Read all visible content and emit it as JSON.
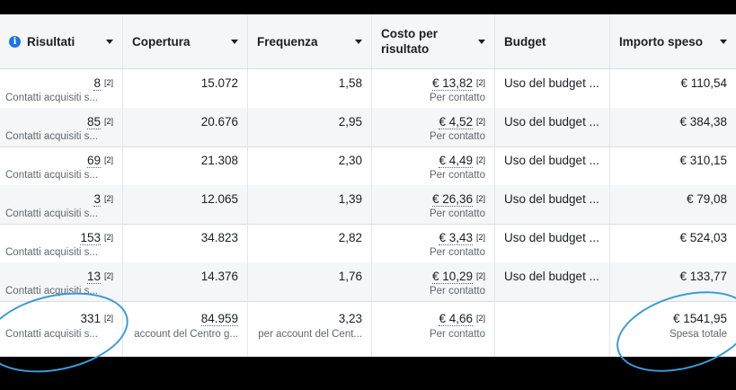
{
  "columns": [
    {
      "label": "Risultati",
      "has_info": true,
      "has_caret": true
    },
    {
      "label": "Copertura",
      "has_caret": true
    },
    {
      "label": "Frequenza",
      "has_caret": true
    },
    {
      "label": "Costo per\nrisultato",
      "has_caret": true
    },
    {
      "label": "Budget",
      "has_caret": false
    },
    {
      "label": "Importo speso",
      "has_caret": true
    }
  ],
  "rows": [
    {
      "results": "8",
      "results_sup": "[2]",
      "results_sub": "Contatti acquisiti s...",
      "reach": "15.072",
      "frequency": "1,58",
      "cost": "€ 13,82",
      "cost_sup": "[2]",
      "cost_sub": "Per contatto",
      "budget": "Uso del budget ...",
      "spent": "€ 110,54"
    },
    {
      "results": "85",
      "results_sup": "[2]",
      "results_sub": "Contatti acquisiti s...",
      "reach": "20.676",
      "frequency": "2,95",
      "cost": "€ 4,52",
      "cost_sup": "[2]",
      "cost_sub": "Per contatto",
      "budget": "Uso del budget ...",
      "spent": "€ 384,38"
    },
    {
      "results": "69",
      "results_sup": "[2]",
      "results_sub": "Contatti acquisiti s...",
      "reach": "21.308",
      "frequency": "2,30",
      "cost": "€ 4,49",
      "cost_sup": "[2]",
      "cost_sub": "Per contatto",
      "budget": "Uso del budget ...",
      "spent": "€ 310,15"
    },
    {
      "results": "3",
      "results_sup": "[2]",
      "results_sub": "Contatti acquisiti s...",
      "reach": "12.065",
      "frequency": "1,39",
      "cost": "€ 26,36",
      "cost_sup": "[2]",
      "cost_sub": "Per contatto",
      "budget": "Uso del budget ...",
      "spent": "€ 79,08"
    },
    {
      "results": "153",
      "results_sup": "[2]",
      "results_sub": "Contatti acquisiti s...",
      "reach": "34.823",
      "frequency": "2,82",
      "cost": "€ 3,43",
      "cost_sup": "[2]",
      "cost_sub": "Per contatto",
      "budget": "Uso del budget ...",
      "spent": "€ 524,03"
    },
    {
      "results": "13",
      "results_sup": "[2]",
      "results_sub": "Contatti acquisiti s...",
      "reach": "14.376",
      "frequency": "1,76",
      "cost": "€ 10,29",
      "cost_sup": "[2]",
      "cost_sub": "Per contatto",
      "budget": "Uso del budget ...",
      "spent": "€ 133,77"
    }
  ],
  "totals": {
    "results": "331",
    "results_sup": "[2]",
    "results_sub": "Contatti acquisiti s...",
    "reach": "84.959",
    "reach_sub": "account del Centro g...",
    "frequency": "3,23",
    "frequency_sub": "per account del Cent...",
    "cost": "€ 4,66",
    "cost_sup": "[2]",
    "cost_sub": "Per contatto",
    "spent": "€ 1541,95",
    "spent_sub": "Spesa totale"
  },
  "colors": {
    "annotation": "#3a9ad9",
    "info_icon": "#1b74e4"
  }
}
